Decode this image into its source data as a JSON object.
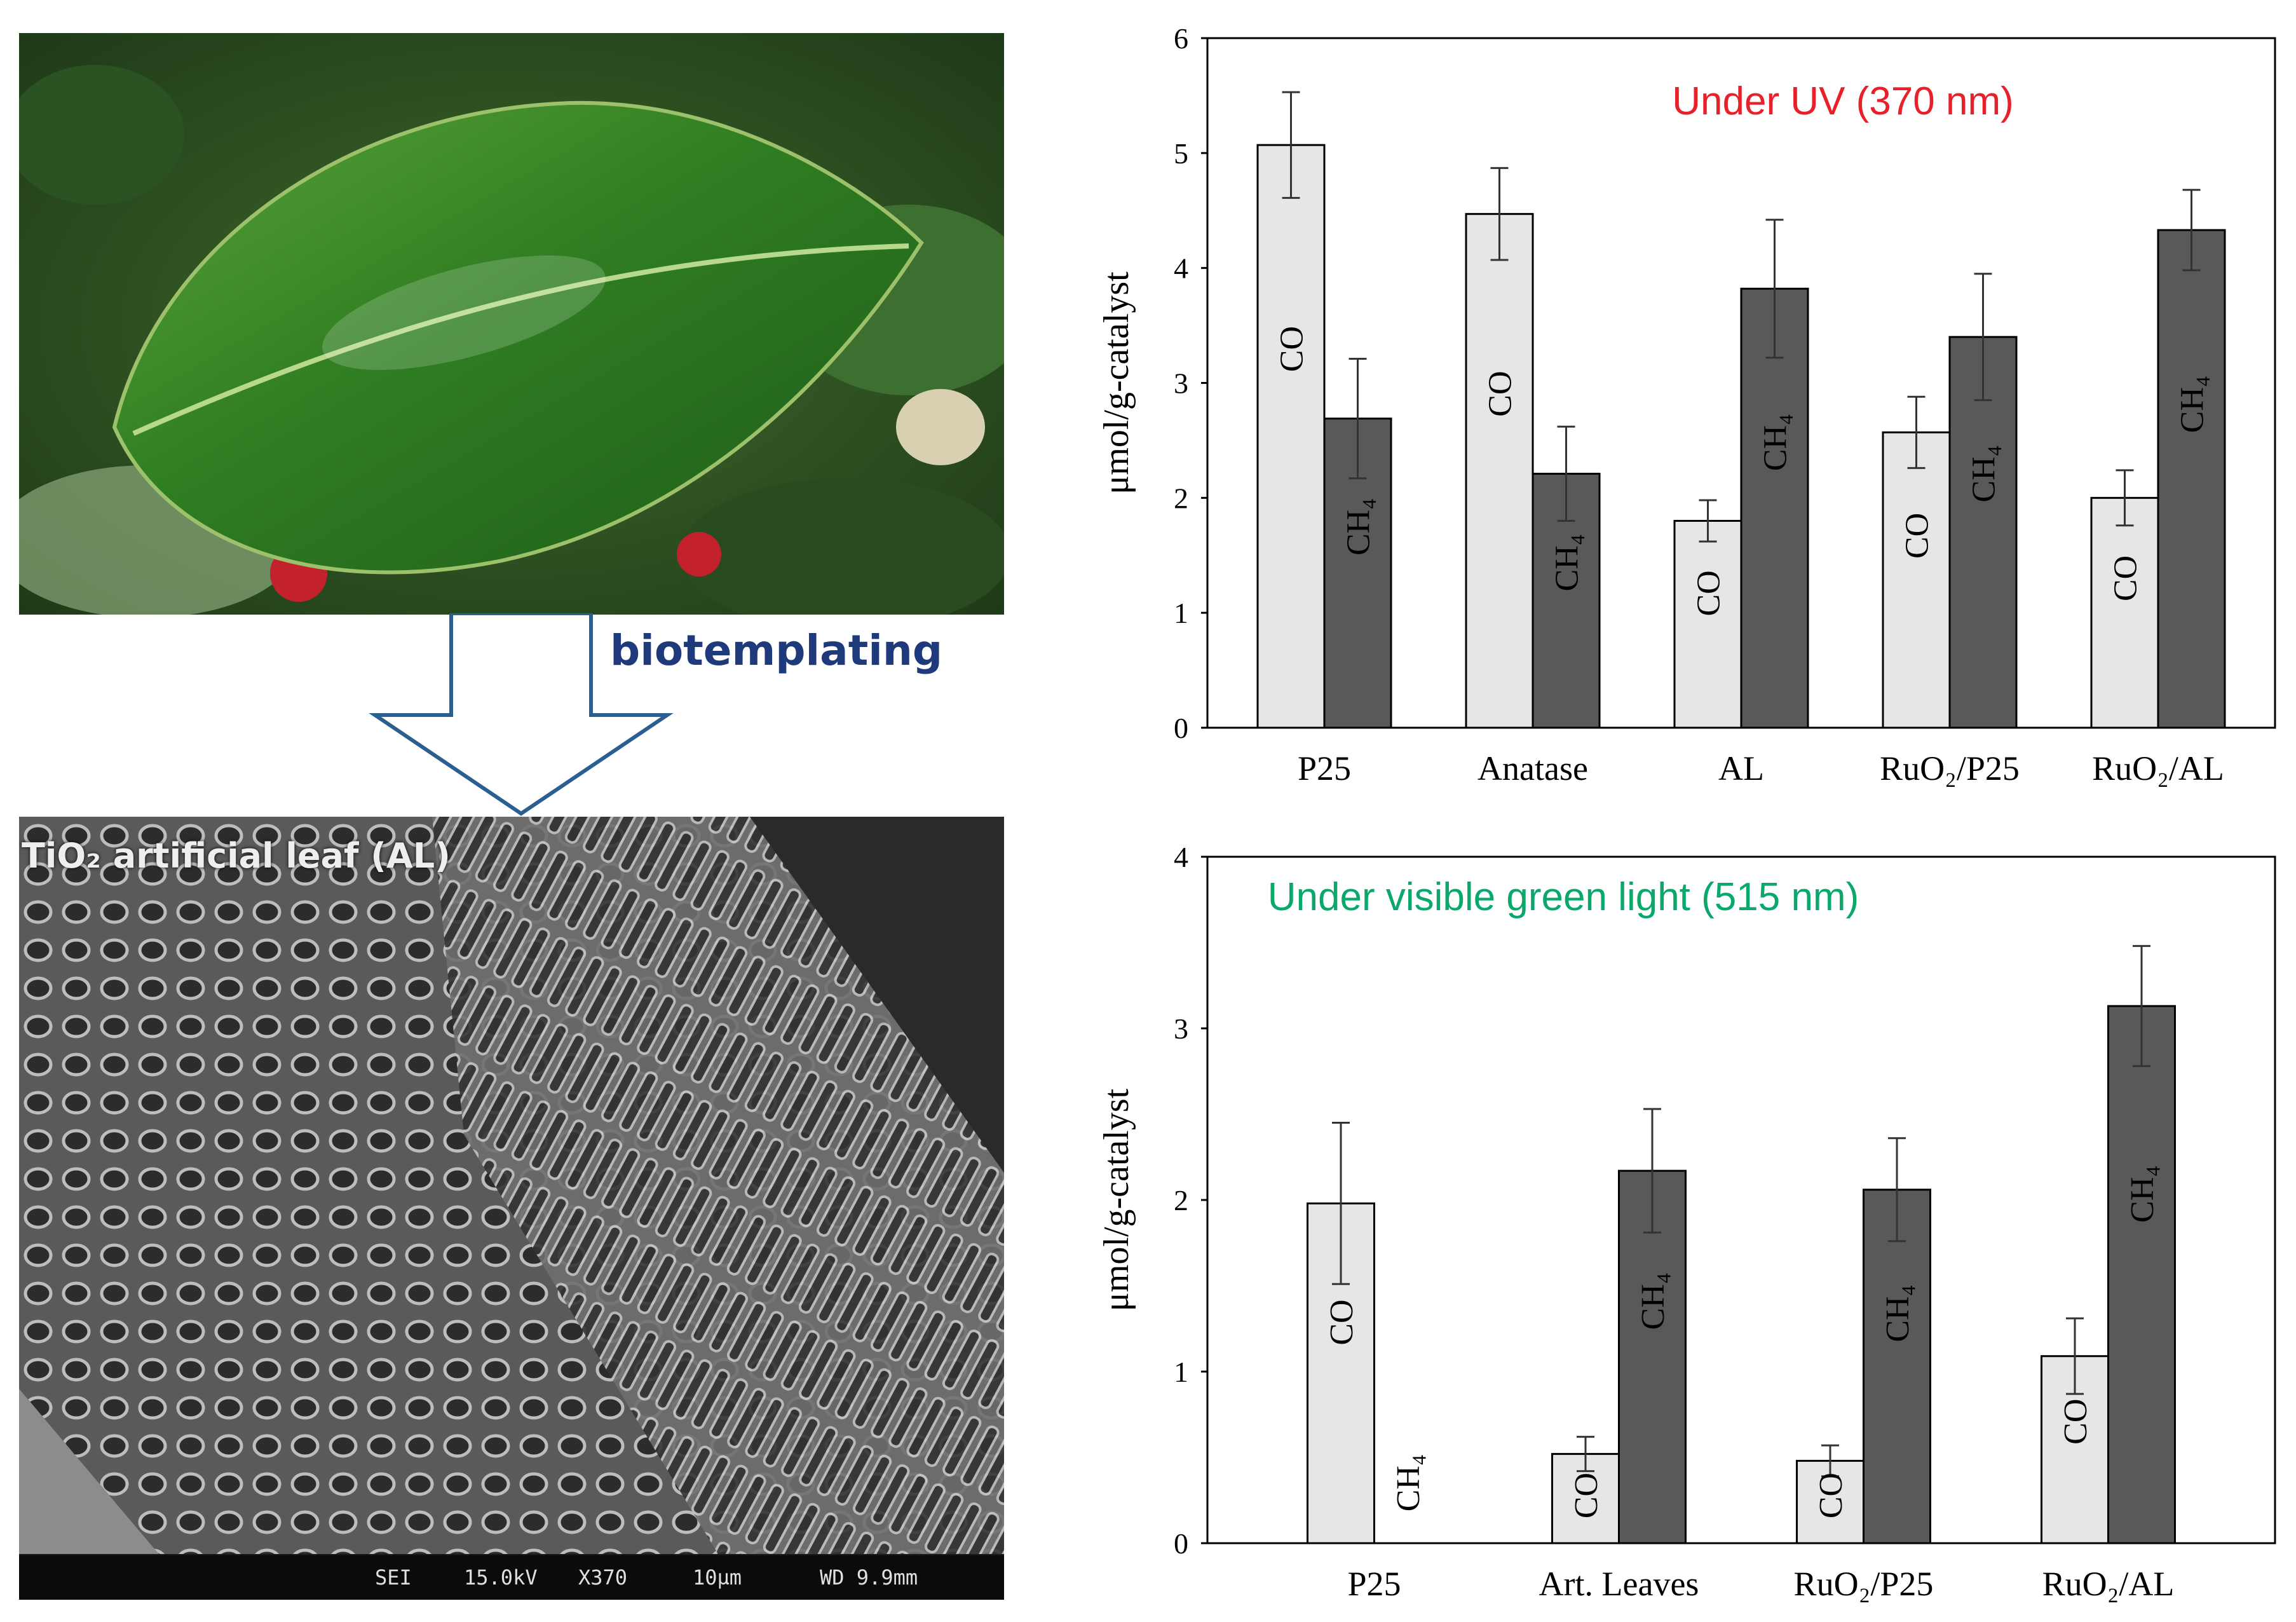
{
  "left": {
    "leaf_photo_label": "",
    "arrow_label": "biotemplating",
    "sem_caption": "TiO₂ artificial leaf (AL)",
    "sem_footer": [
      "SEI",
      "15.0kV",
      "X370",
      "10µm",
      "WD 9.9mm"
    ]
  },
  "colors": {
    "co_bar": "#e6e6e6",
    "ch4_bar": "#595959",
    "uv_title": "#e8202a",
    "vis_title": "#0aa86a",
    "arrow_label": "#1f3a7a"
  },
  "chart_data": [
    {
      "type": "bar",
      "title": "Under UV (370 nm)",
      "ylabel": "μmol/g-catalyst",
      "xlabel": "",
      "ylim": [
        0,
        6
      ],
      "yticks": [
        0,
        1,
        2,
        3,
        4,
        5,
        6
      ],
      "grid": false,
      "categories": [
        "P25",
        "Anatase",
        "AL",
        "RuO₂/P25",
        "RuO₂/AL"
      ],
      "series": [
        {
          "label": "CO",
          "values": [
            5.07,
            4.47,
            1.8,
            2.57,
            2.0
          ],
          "errors": [
            0.46,
            0.4,
            0.18,
            0.31,
            0.24
          ]
        },
        {
          "label": "CH₄",
          "values": [
            2.69,
            2.21,
            3.82,
            3.4,
            4.33
          ],
          "errors": [
            0.52,
            0.41,
            0.6,
            0.55,
            0.35
          ]
        }
      ]
    },
    {
      "type": "bar",
      "title": "Under visible green light (515 nm)",
      "ylabel": "μmol/g-catalyst",
      "xlabel": "",
      "ylim": [
        0,
        4
      ],
      "yticks": [
        0,
        1,
        2,
        3,
        4
      ],
      "grid": false,
      "categories": [
        "P25",
        "Art. Leaves",
        "RuO₂/P25",
        "RuO₂/AL"
      ],
      "series": [
        {
          "label": "CO",
          "values": [
            1.98,
            0.52,
            0.48,
            1.09
          ],
          "errors": [
            0.47,
            0.1,
            0.09,
            0.22
          ]
        },
        {
          "label": "CH₄",
          "values": [
            0.0,
            2.17,
            2.06,
            3.13
          ],
          "errors": [
            0.0,
            0.36,
            0.3,
            0.35
          ]
        }
      ]
    }
  ]
}
